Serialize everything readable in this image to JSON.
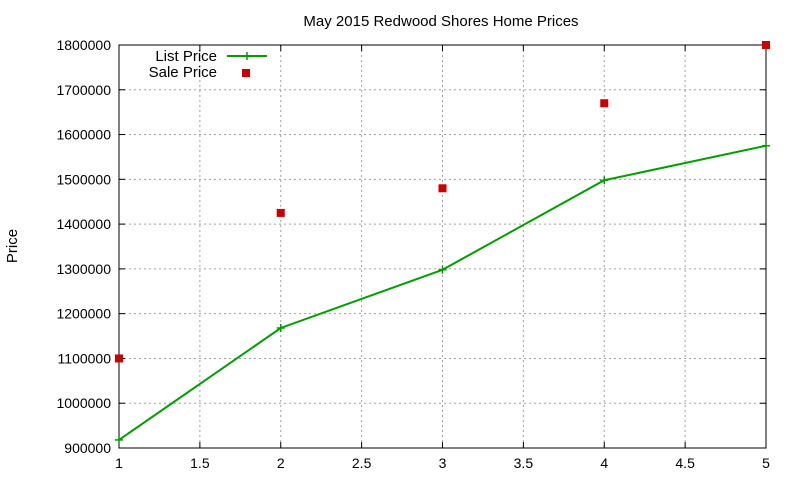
{
  "chart_data": {
    "type": "line",
    "title": "May 2015 Redwood Shores Home Prices",
    "xlabel": "",
    "ylabel": "Price",
    "xlim": [
      1,
      5
    ],
    "ylim": [
      900000,
      1800000
    ],
    "xticks": [
      1,
      1.5,
      2,
      2.5,
      3,
      3.5,
      4,
      4.5,
      5
    ],
    "yticks": [
      900000,
      1000000,
      1100000,
      1200000,
      1300000,
      1400000,
      1500000,
      1600000,
      1700000,
      1800000
    ],
    "grid": true,
    "legend_position": "top-left",
    "series": [
      {
        "name": "List Price",
        "style": "lines+points",
        "color": "#009e00",
        "marker": "plus",
        "x": [
          1,
          2,
          3,
          4,
          5
        ],
        "y": [
          918000,
          1168000,
          1298000,
          1498000,
          1575000
        ]
      },
      {
        "name": "Sale Price",
        "style": "points",
        "color": "#cc0000",
        "marker": "square",
        "x": [
          1,
          2,
          3,
          4,
          5
        ],
        "y": [
          1100000,
          1425000,
          1480000,
          1670000,
          1800000
        ]
      }
    ]
  }
}
